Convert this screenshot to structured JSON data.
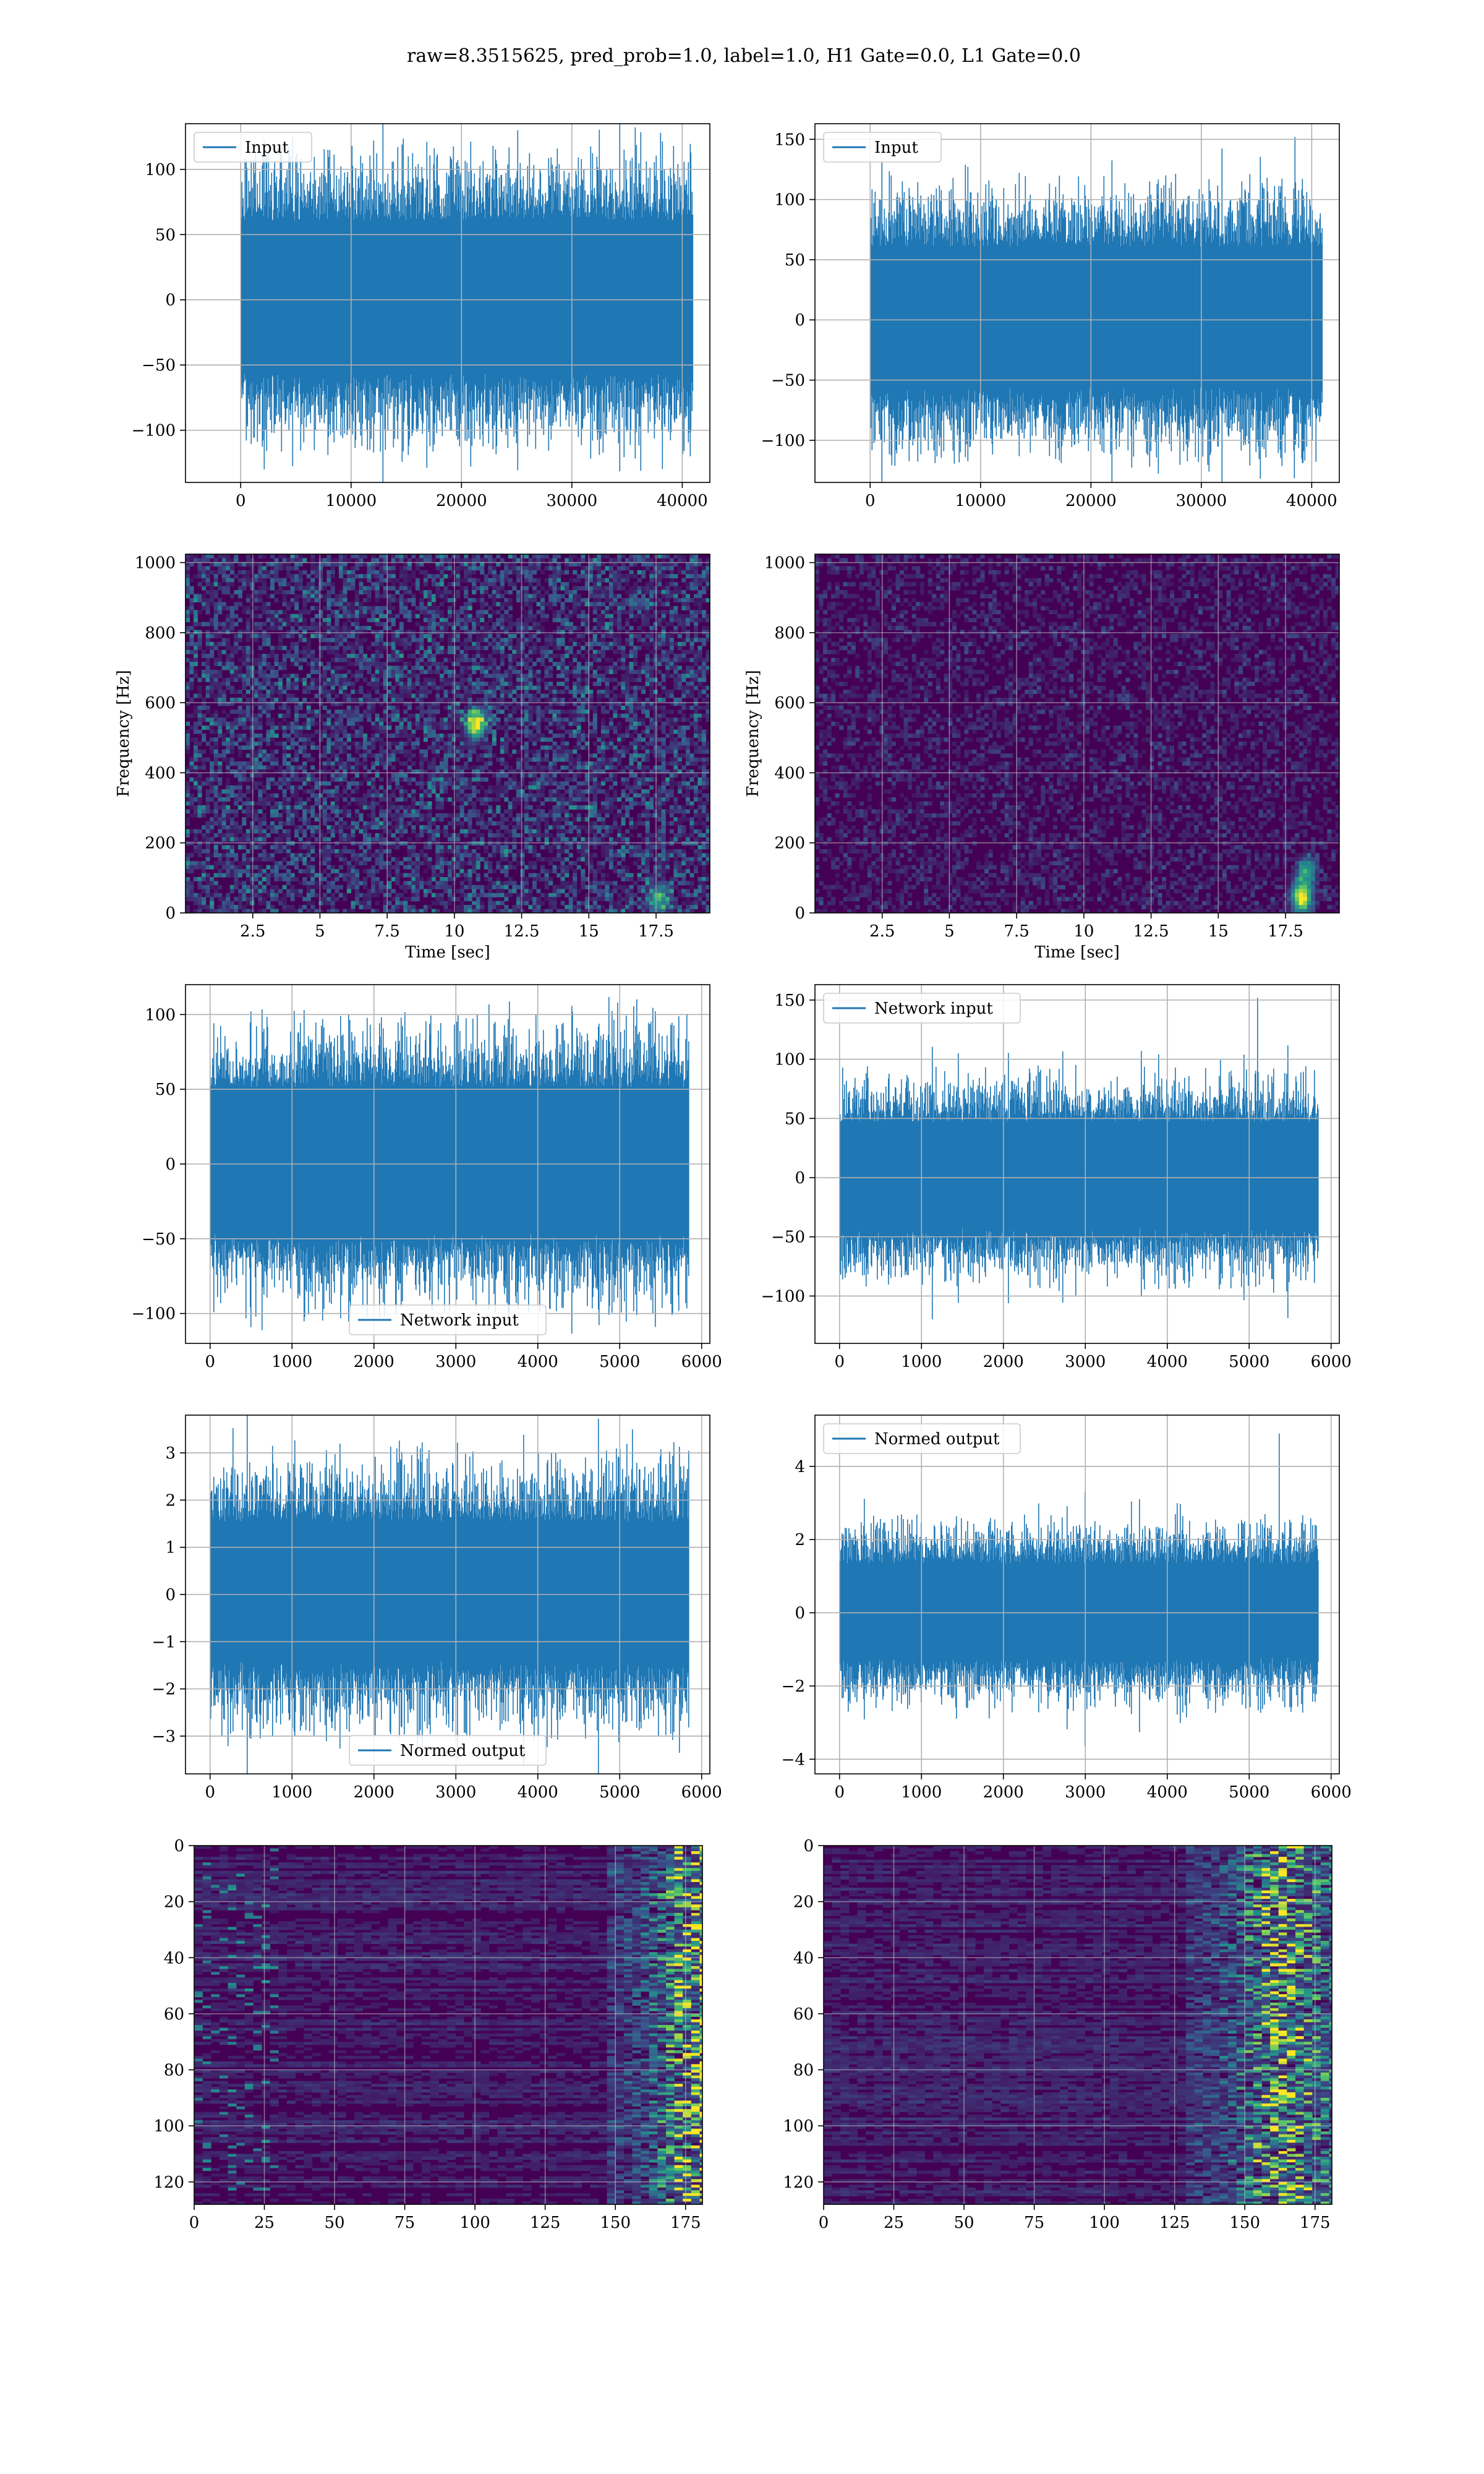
{
  "figure": {
    "suptitle": "raw=8.3515625, pred_prob=1.0, label=1.0, H1 Gate=0.0, L1 Gate=0.0",
    "colors": {
      "line": "#1f77b4",
      "viridis_background": "#440154",
      "viridis_dark": "#3b2a74",
      "viridis_mid": "#21918c",
      "viridis_bright": "#fde725",
      "grid": "#b0b0b0"
    }
  },
  "chart_data": [
    {
      "id": "h1-input",
      "type": "line",
      "series": [
        {
          "name": "Input"
        }
      ],
      "legend": "upper left",
      "xlim": [
        -5000,
        42500
      ],
      "ylim": [
        -140,
        135
      ],
      "xticks": [
        0,
        10000,
        20000,
        30000,
        40000
      ],
      "yticks": [
        -100,
        -50,
        0,
        50,
        100
      ],
      "n_samples": 40960,
      "signal": {
        "envelope": 45,
        "peak": 128
      },
      "grid": true,
      "xlabel": "",
      "ylabel": ""
    },
    {
      "id": "l1-input",
      "type": "line",
      "series": [
        {
          "name": "Input"
        }
      ],
      "legend": "upper left",
      "xlim": [
        -5000,
        42500
      ],
      "ylim": [
        -135,
        163
      ],
      "xticks": [
        0,
        10000,
        20000,
        30000,
        40000
      ],
      "yticks": [
        -100,
        -50,
        0,
        50,
        100,
        150
      ],
      "n_samples": 40960,
      "signal": {
        "envelope": 45,
        "peak": 152
      },
      "grid": true,
      "xlabel": "",
      "ylabel": ""
    },
    {
      "id": "h1-spectrogram",
      "type": "heatmap",
      "xlim": [
        0,
        19.5
      ],
      "ylim": [
        0,
        1024
      ],
      "xticks": [
        2.5,
        5.0,
        7.5,
        10.0,
        12.5,
        15.0,
        17.5
      ],
      "yticks": [
        0,
        200,
        400,
        600,
        800,
        1000
      ],
      "xlabel": "Time [sec]",
      "ylabel": "Frequency [Hz]",
      "colormap": "viridis",
      "grid": true,
      "noise_level": 0.25,
      "features": [
        {
          "x": 17.6,
          "y": 40,
          "strength": 0.55
        },
        {
          "x": 10.8,
          "y": 540,
          "strength": 0.9
        }
      ]
    },
    {
      "id": "l1-spectrogram",
      "type": "heatmap",
      "xlim": [
        0,
        19.5
      ],
      "ylim": [
        0,
        1024
      ],
      "xticks": [
        2.5,
        5.0,
        7.5,
        10.0,
        12.5,
        15.0,
        17.5
      ],
      "yticks": [
        0,
        200,
        400,
        600,
        800,
        1000
      ],
      "xlabel": "Time [sec]",
      "ylabel": "Frequency [Hz]",
      "colormap": "viridis",
      "grid": true,
      "noise_level": 0.12,
      "features": [
        {
          "x": 18.1,
          "y": 45,
          "strength": 1.0
        },
        {
          "x": 18.3,
          "y": 120,
          "strength": 0.5
        }
      ]
    },
    {
      "id": "h1-network-input",
      "type": "line",
      "series": [
        {
          "name": "Network input"
        }
      ],
      "legend": "lower center",
      "xlim": [
        -300,
        6100
      ],
      "ylim": [
        -120,
        120
      ],
      "xticks": [
        0,
        1000,
        2000,
        3000,
        4000,
        5000,
        6000
      ],
      "yticks": [
        -100,
        -50,
        0,
        50,
        100
      ],
      "n_samples": 5840,
      "signal": {
        "envelope": 38,
        "peak": 108
      },
      "grid": true,
      "xlabel": "",
      "ylabel": ""
    },
    {
      "id": "l1-network-input",
      "type": "line",
      "series": [
        {
          "name": "Network input"
        }
      ],
      "legend": "upper left",
      "xlim": [
        -300,
        6100
      ],
      "ylim": [
        -140,
        163
      ],
      "xticks": [
        0,
        1000,
        2000,
        3000,
        4000,
        5000,
        6000
      ],
      "yticks": [
        -100,
        -50,
        0,
        50,
        100,
        150
      ],
      "n_samples": 5840,
      "signal": {
        "envelope": 35,
        "peak": 152
      },
      "grid": true,
      "xlabel": "",
      "ylabel": ""
    },
    {
      "id": "h1-normed-output",
      "type": "line",
      "series": [
        {
          "name": "Normed output"
        }
      ],
      "legend": "lower center",
      "xlim": [
        -300,
        6100
      ],
      "ylim": [
        -3.8,
        3.8
      ],
      "xticks": [
        0,
        1000,
        2000,
        3000,
        4000,
        5000,
        6000
      ],
      "yticks": [
        -3,
        -2,
        -1,
        0,
        1,
        2,
        3
      ],
      "n_samples": 5840,
      "signal": {
        "envelope": 1.15,
        "peak": 3.5
      },
      "grid": true,
      "xlabel": "",
      "ylabel": ""
    },
    {
      "id": "l1-normed-output",
      "type": "line",
      "series": [
        {
          "name": "Normed output"
        }
      ],
      "legend": "upper left",
      "xlim": [
        -300,
        6100
      ],
      "ylim": [
        -4.4,
        5.4
      ],
      "xticks": [
        0,
        1000,
        2000,
        3000,
        4000,
        5000,
        6000
      ],
      "yticks": [
        -4,
        -2,
        0,
        2,
        4
      ],
      "n_samples": 5840,
      "signal": {
        "envelope": 1.0,
        "peak": 4.9
      },
      "grid": true,
      "xlabel": "",
      "ylabel": ""
    },
    {
      "id": "h1-feature-map",
      "type": "heatmap",
      "xlim": [
        0,
        181
      ],
      "ylim": [
        128,
        0
      ],
      "xticks": [
        0,
        25,
        50,
        75,
        100,
        125,
        150,
        175
      ],
      "yticks": [
        0,
        20,
        40,
        60,
        80,
        100,
        120
      ],
      "colormap": "viridis",
      "grid": true,
      "activity": {
        "onset": 145,
        "peak_col": 178,
        "scatter_left": true
      }
    },
    {
      "id": "l1-feature-map",
      "type": "heatmap",
      "xlim": [
        0,
        181
      ],
      "ylim": [
        128,
        0
      ],
      "xticks": [
        0,
        25,
        50,
        75,
        100,
        125,
        150,
        175
      ],
      "yticks": [
        0,
        20,
        40,
        60,
        80,
        100,
        120
      ],
      "colormap": "viridis",
      "grid": true,
      "activity": {
        "onset": 128,
        "peak_col": 160,
        "scatter_left": false
      }
    }
  ]
}
